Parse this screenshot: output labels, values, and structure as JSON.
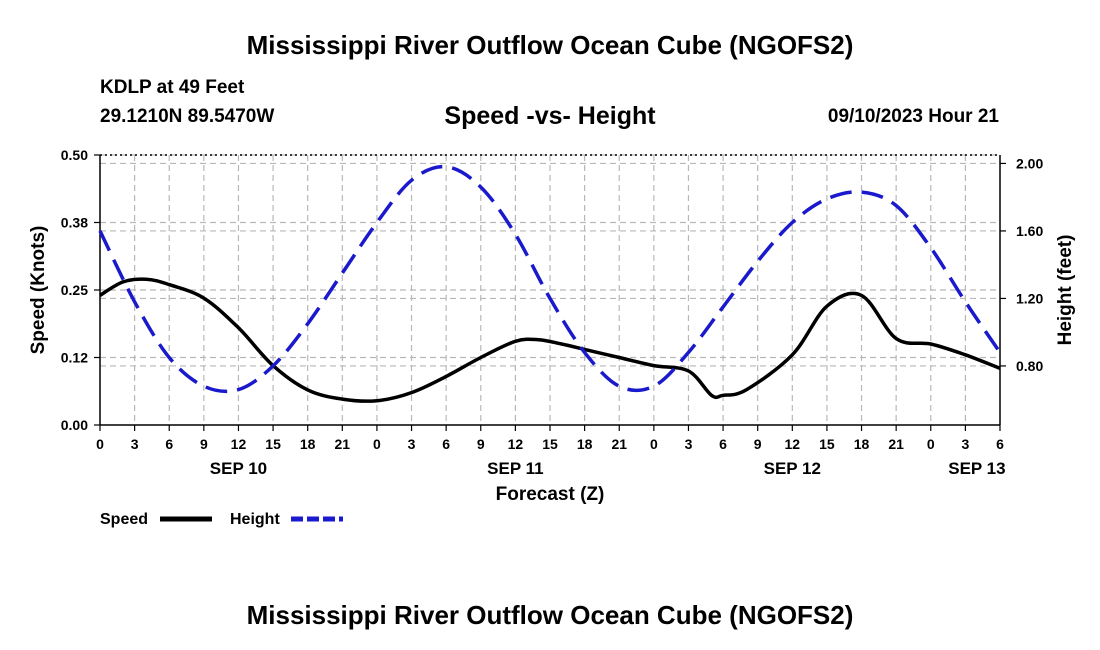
{
  "chart_data": {
    "type": "line",
    "title": "Mississippi River Outflow Ocean Cube (NGOFS2)",
    "footer_title": "Mississippi River Outflow Ocean Cube (NGOFS2)",
    "station": "KDLP at 49 Feet",
    "coords": "29.1210N  89.5470W",
    "subtitle": "Speed -vs- Height",
    "timestamp": "09/10/2023 Hour 21",
    "xlabel": "Forecast (Z)",
    "ylabel_left": "Speed (Knots)",
    "ylabel_right": "Height (feet)",
    "x_unit": "hours since 09/10 00Z",
    "xlim": [
      0,
      78
    ],
    "ylim_left": [
      0,
      0.5
    ],
    "ylim_right": [
      0.45,
      2.05
    ],
    "x_tick_values": [
      0,
      3,
      6,
      9,
      12,
      15,
      18,
      21,
      24,
      27,
      30,
      33,
      36,
      39,
      42,
      45,
      48,
      51,
      54,
      57,
      60,
      63,
      66,
      69,
      72,
      75,
      78
    ],
    "x_tick_labels": [
      "0",
      "3",
      "6",
      "9",
      "12",
      "15",
      "18",
      "21",
      "0",
      "3",
      "6",
      "9",
      "12",
      "15",
      "18",
      "21",
      "0",
      "3",
      "6",
      "9",
      "12",
      "15",
      "18",
      "21",
      "0",
      "3",
      "6"
    ],
    "left_tick_values": [
      0,
      0.125,
      0.25,
      0.375,
      0.5
    ],
    "left_tick_labels": [
      "0.00",
      "0.12",
      "0.25",
      "0.38",
      "0.50"
    ],
    "right_tick_values": [
      0.8,
      1.2,
      1.6,
      2.0
    ],
    "right_tick_labels": [
      "0.80",
      "1.20",
      "1.60",
      "2.00"
    ],
    "date_labels": [
      {
        "x": 12,
        "label": "SEP 10"
      },
      {
        "x": 36,
        "label": "SEP 11"
      },
      {
        "x": 60,
        "label": "SEP 12"
      },
      {
        "x": 76,
        "label": "SEP 13"
      }
    ],
    "grid": true,
    "series": [
      {
        "name": "Speed",
        "axis": "left",
        "color": "#000000",
        "dash": "solid",
        "x": [
          0,
          2,
          4,
          6,
          9,
          12,
          15,
          18,
          21,
          24,
          27,
          30,
          33,
          36,
          38,
          40,
          42,
          45,
          48,
          51,
          53,
          54,
          56,
          60,
          63,
          66,
          69,
          72,
          75,
          78
        ],
        "y": [
          0.24,
          0.265,
          0.27,
          0.26,
          0.235,
          0.18,
          0.11,
          0.065,
          0.048,
          0.045,
          0.06,
          0.09,
          0.125,
          0.155,
          0.158,
          0.15,
          0.14,
          0.125,
          0.11,
          0.1,
          0.055,
          0.055,
          0.065,
          0.13,
          0.22,
          0.24,
          0.16,
          0.15,
          0.13,
          0.105
        ]
      },
      {
        "name": "Height",
        "axis": "right",
        "color": "#1a1acc",
        "dash": "dashed",
        "x": [
          0,
          3,
          6,
          9,
          12,
          15,
          18,
          21,
          24,
          27,
          30,
          33,
          36,
          39,
          42,
          45,
          48,
          51,
          54,
          57,
          60,
          63,
          66,
          69,
          72,
          75,
          78
        ],
        "y": [
          1.6,
          1.18,
          0.85,
          0.68,
          0.66,
          0.8,
          1.05,
          1.35,
          1.65,
          1.9,
          1.98,
          1.86,
          1.58,
          1.2,
          0.88,
          0.68,
          0.68,
          0.88,
          1.15,
          1.42,
          1.65,
          1.79,
          1.83,
          1.75,
          1.5,
          1.18,
          0.88
        ]
      }
    ],
    "legend": [
      {
        "label": "Speed",
        "color": "#000000",
        "dash": "solid"
      },
      {
        "label": "Height",
        "color": "#1a1acc",
        "dash": "dashed"
      }
    ],
    "legend_position": "bottom-left"
  }
}
